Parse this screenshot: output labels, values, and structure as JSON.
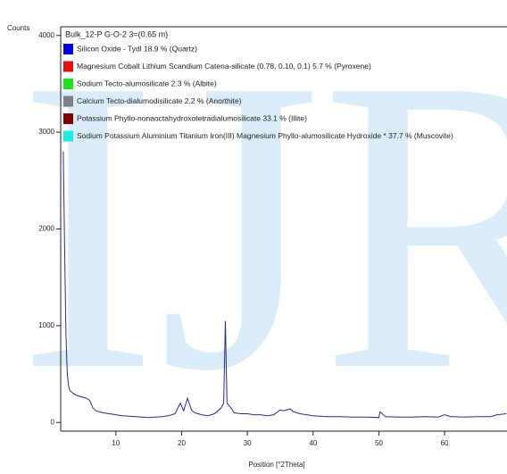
{
  "chart_data": {
    "type": "line",
    "watermark": "IJRE",
    "y_label": "Counts",
    "x_label": "Position [°2Theta]",
    "xlim": [
      1.6,
      69.5
    ],
    "ylim": [
      -90,
      4090
    ],
    "xticks": [
      10,
      20,
      30,
      40,
      50,
      60
    ],
    "yticks": [
      0,
      1000,
      2000,
      3000,
      4000
    ],
    "x": [
      2.0,
      2.2,
      2.4,
      2.6,
      2.8,
      3.0,
      3.5,
      4,
      4.5,
      5,
      5.5,
      6,
      6.5,
      7,
      8,
      9,
      10,
      11,
      12,
      13,
      14,
      15,
      16,
      17,
      18,
      19,
      19.8,
      20.3,
      20.9,
      21.5,
      22,
      23,
      24,
      25,
      26,
      26.4,
      26.65,
      26.9,
      27.5,
      28,
      29,
      30,
      31,
      32,
      33,
      34,
      35,
      35.5,
      36.5,
      37,
      38,
      39,
      40,
      42,
      44,
      46,
      48,
      50,
      50.2,
      51,
      53,
      55,
      57,
      59,
      60,
      61,
      63,
      65,
      67,
      68,
      69.4
    ],
    "series": [
      {
        "name": "Bulk_12-P G-O-2 3=(0.65 m)",
        "color": "#2b2b8c",
        "values": [
          2800,
          1800,
          900,
          500,
          380,
          330,
          300,
          280,
          270,
          260,
          250,
          230,
          150,
          120,
          100,
          90,
          80,
          70,
          65,
          60,
          55,
          50,
          55,
          60,
          70,
          90,
          200,
          120,
          250,
          130,
          100,
          80,
          70,
          90,
          150,
          200,
          1050,
          200,
          150,
          100,
          90,
          90,
          80,
          80,
          70,
          80,
          130,
          120,
          140,
          110,
          90,
          80,
          70,
          60,
          60,
          55,
          55,
          50,
          110,
          60,
          55,
          55,
          60,
          55,
          80,
          60,
          55,
          60,
          60,
          80,
          90
        ]
      }
    ],
    "phases": [
      {
        "name": "Silicon Oxide - Tydl 18.9 % (Quartz)",
        "color": "#0000e0"
      },
      {
        "name": "Magnesium Cobalt Lithium Scandium Catena-silicate (0.78, 0.10, 0.1) 5.7 % (Pyroxene)",
        "color": "#e01010"
      },
      {
        "name": "Sodium Tecto-alumosilicate 2.3 % (Albite)",
        "color": "#20e020"
      },
      {
        "name": "Calcium Tecto-dialumodisilicate 2.2 % (Anorthite)",
        "color": "#808080"
      },
      {
        "name": "Potassium Phyllo-nonaoctahydroxotetradialumosilicate 33.1 % (Illite)",
        "color": "#800000"
      },
      {
        "name": "Sodium Potassium Aluminium Titanium Iron(III) Magnesium Phyllo-alumosilicate Hydroxide * 37.7 % (Muscovite)",
        "color": "#20e8e8"
      }
    ]
  }
}
